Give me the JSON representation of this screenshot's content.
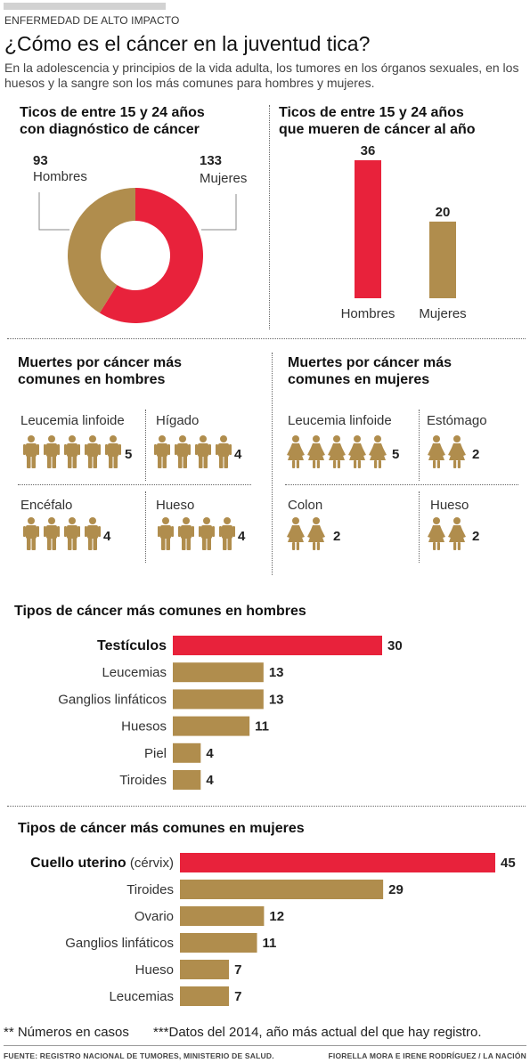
{
  "header": {
    "kicker": "ENFERMEDAD DE ALTO IMPACTO",
    "title": "¿Cómo es el cáncer en la juventud tica?",
    "subtitle": "En la adolescencia y principios de la vida adulta, los tumores en los órganos sexuales, en los huesos y la sangre son los más comunes para hombres y mujeres."
  },
  "colors": {
    "red": "#e8223b",
    "gold": "#b08d4d"
  },
  "chart_data": [
    {
      "type": "pie",
      "title_line1": "Ticos de entre 15 y 24 años",
      "title_line2": "con diagnóstico de cáncer",
      "slices": [
        {
          "value": 93,
          "label": "Hombres",
          "value_text": "93",
          "color": "#b08d4d"
        },
        {
          "value": 133,
          "label": "Mujeres",
          "value_text": "133",
          "color": "#e8223b"
        }
      ]
    },
    {
      "type": "bar",
      "title_line1": "Ticos de entre 15 y 24 años",
      "title_line2": "que mueren de cáncer al año",
      "categories": [
        "Hombres",
        "Mujeres"
      ],
      "values": [
        36,
        20
      ],
      "colors": [
        "#e8223b",
        "#b08d4d"
      ]
    },
    {
      "type": "table",
      "title_line1": "Muertes por cáncer más",
      "title_line2": "comunes en hombres",
      "icon": "male-figure-icon",
      "items": [
        {
          "label": "Leucemia linfoide",
          "value": 5
        },
        {
          "label": "Hígado",
          "value": 4
        },
        {
          "label": "Encéfalo",
          "value": 4
        },
        {
          "label": "Hueso",
          "value": 4
        }
      ]
    },
    {
      "type": "table",
      "title_line1": "Muertes por cáncer más",
      "title_line2": "comunes en mujeres",
      "icon": "female-figure-icon",
      "items": [
        {
          "label": "Leucemia linfoide",
          "value": 5
        },
        {
          "label": "Estómago",
          "value": 2
        },
        {
          "label": "Colon",
          "value": 2
        },
        {
          "label": "Hueso",
          "value": 2
        }
      ]
    },
    {
      "type": "bar",
      "title": "Tipos de cáncer más comunes en hombres",
      "orientation": "horizontal",
      "categories": [
        "Testículos",
        "Leucemias",
        "Ganglios linfáticos",
        "Huesos",
        "Piel",
        "Tiroides"
      ],
      "values": [
        30,
        13,
        13,
        11,
        4,
        4
      ],
      "highlight_index": 0
    },
    {
      "type": "bar",
      "title": "Tipos de cáncer más comunes en mujeres",
      "orientation": "horizontal",
      "categories": [
        "Cuello uterino",
        "Tiroides",
        "Ovario",
        "Ganglios linfáticos",
        "Hueso",
        "Leucemias"
      ],
      "category_suffix": [
        " (cérvix)",
        "",
        "",
        "",
        "",
        ""
      ],
      "values": [
        45,
        29,
        12,
        11,
        7,
        7
      ],
      "highlight_index": 0
    }
  ],
  "footer": {
    "note1": "** Números en casos",
    "note2": "***Datos del 2014, año más actual del que hay registro.",
    "source": "FUENTE: REGISTRO NACIONAL DE TUMORES, MINISTERIO DE SALUD.",
    "credit": "FIORELLA MORA E IRENE RODRÍGUEZ / LA NACIÓN"
  }
}
